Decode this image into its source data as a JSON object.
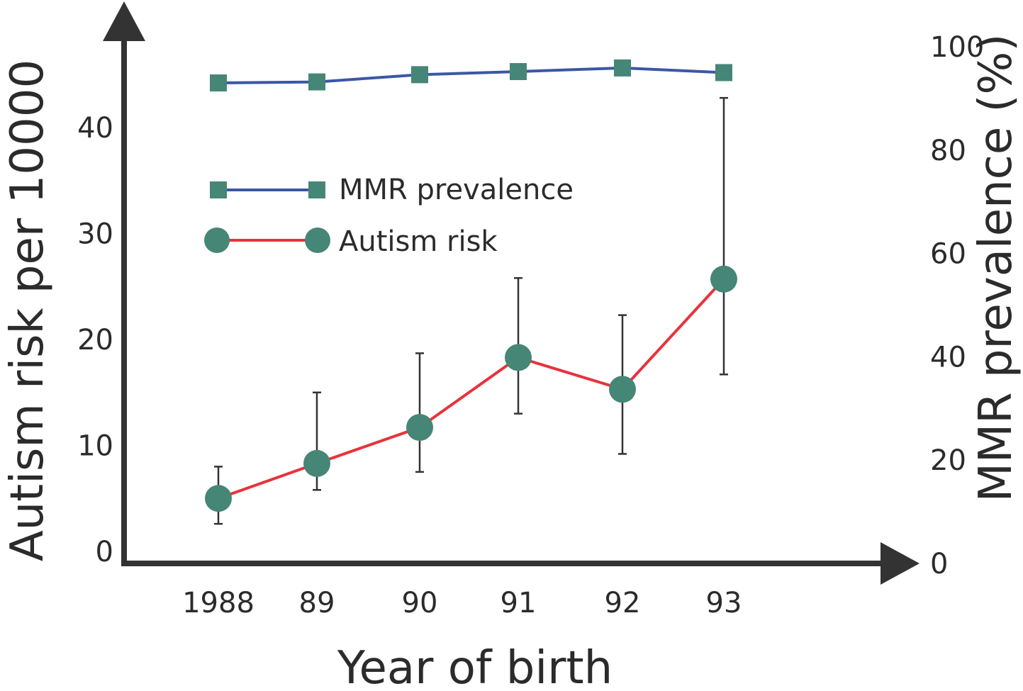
{
  "chart_data": {
    "type": "line",
    "title": "",
    "xlabel": "Year of birth",
    "ylabel_left": "Autism risk per 10000",
    "ylabel_right": "MMR prevalence (%)",
    "x_tick_labels": [
      "1988",
      "89",
      "90",
      "91",
      "92",
      "93"
    ],
    "y_left_ticks": [
      0,
      10,
      20,
      30,
      40
    ],
    "y_right_ticks": [
      0,
      20,
      40,
      60,
      80,
      100
    ],
    "y_left_range": [
      0,
      48
    ],
    "y_right_range": [
      0,
      100
    ],
    "grid": false,
    "legend_position": "upper-left",
    "series": [
      {
        "name": "MMR prevalence",
        "axis": "right",
        "marker": "square",
        "line_color": "#3b57a5",
        "marker_color": "#458677",
        "values": [
          93,
          93.2,
          94.6,
          95.2,
          95.9,
          95
        ]
      },
      {
        "name": "Autism risk",
        "axis": "left",
        "marker": "circle",
        "line_color": "#e8333b",
        "marker_color": "#458677",
        "values": [
          5,
          8.3,
          11.7,
          18.3,
          15.3,
          25.7
        ],
        "error_low": [
          2.6,
          5.8,
          7.5,
          13,
          9.2,
          16.7
        ],
        "error_high": [
          8,
          15,
          18.7,
          25.8,
          22.3,
          42.8
        ]
      }
    ]
  }
}
